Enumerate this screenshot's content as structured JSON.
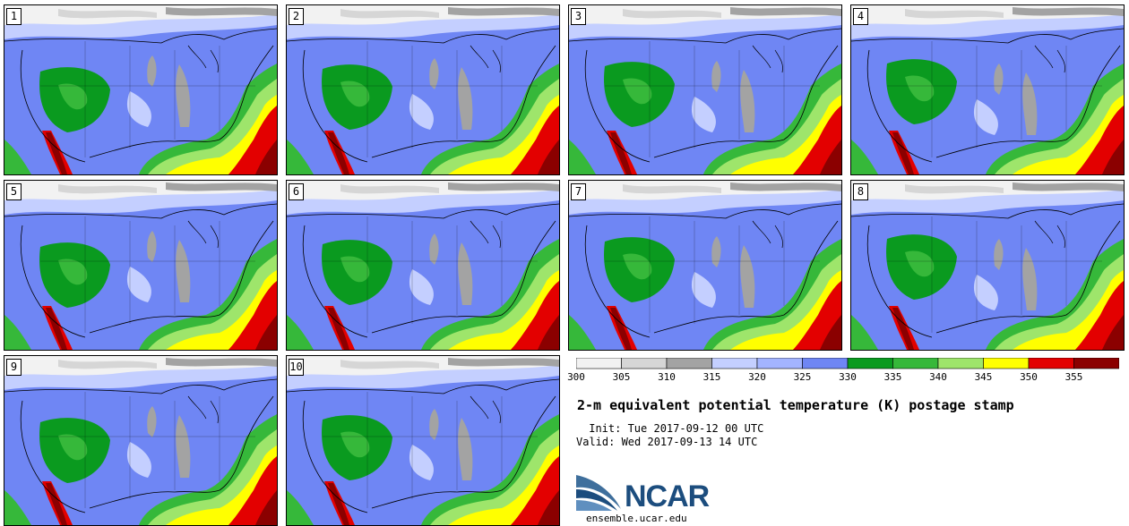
{
  "panels": [
    {
      "label": "1"
    },
    {
      "label": "2"
    },
    {
      "label": "3"
    },
    {
      "label": "4"
    },
    {
      "label": "5"
    },
    {
      "label": "6"
    },
    {
      "label": "7"
    },
    {
      "label": "8"
    },
    {
      "label": "9"
    },
    {
      "label": "10"
    }
  ],
  "colorbar": {
    "levels": [
      "300",
      "305",
      "310",
      "315",
      "320",
      "325",
      "330",
      "335",
      "340",
      "345",
      "350",
      "355"
    ],
    "colors": [
      "#f2f2f2",
      "#d6d6d6",
      "#a3a3a3",
      "#c4cfff",
      "#a3b4ff",
      "#6f86f4",
      "#0a9a1f",
      "#36b83a",
      "#9ee56b",
      "#ffff00",
      "#e30000",
      "#8b0000"
    ]
  },
  "title": "2-m equivalent potential temperature (K) postage stamp",
  "init_text": " Init: Tue 2017-09-12 00 UTC",
  "valid_text": "Valid: Wed 2017-09-13 14 UTC",
  "logo": {
    "name": "NCAR",
    "url": "ensemble.ucar.edu"
  }
}
